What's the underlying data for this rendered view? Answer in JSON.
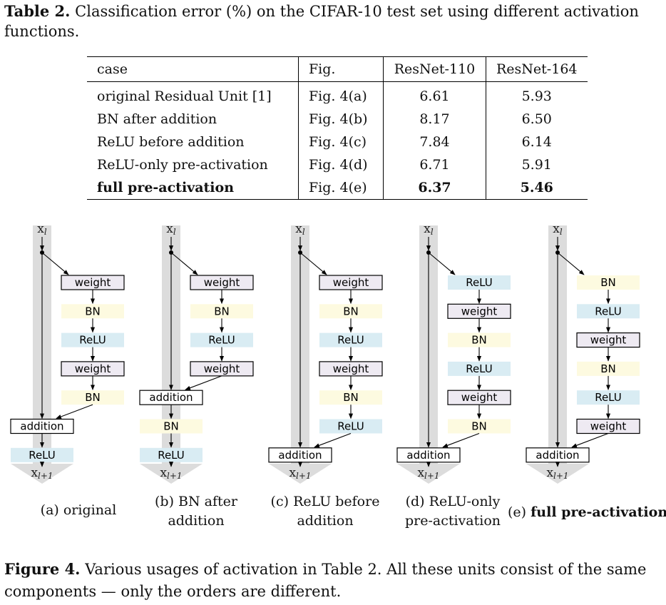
{
  "table": {
    "caption_label": "Table 2.",
    "caption_text": "Classification error (%) on the CIFAR-10 test set using different activation functions.",
    "headers": [
      "case",
      "Fig.",
      "ResNet-110",
      "ResNet-164"
    ],
    "rows": [
      {
        "case": "original Residual Unit [1]",
        "fig": "Fig. 4(a)",
        "resnet110": "6.61",
        "resnet164": "5.93"
      },
      {
        "case": "BN after addition",
        "fig": "Fig. 4(b)",
        "resnet110": "8.17",
        "resnet164": "6.50"
      },
      {
        "case": "ReLU before addition",
        "fig": "Fig. 4(c)",
        "resnet110": "7.84",
        "resnet164": "6.14"
      },
      {
        "case": "ReLU-only pre-activation",
        "fig": "Fig. 4(d)",
        "resnet110": "6.71",
        "resnet164": "5.91"
      },
      {
        "case": "full pre-activation",
        "fig": "Fig. 4(e)",
        "resnet110": "6.37",
        "resnet164": "5.46"
      }
    ]
  },
  "figure": {
    "input_label": "x",
    "input_sub": "l",
    "output_label": "x",
    "output_sub": "l+1",
    "colors": {
      "weight": "#eeeaf2",
      "bn": "#fdfae0",
      "relu": "#d9ecf3",
      "addition": "#ffffff",
      "pathway": "#dcdcdc"
    },
    "diagrams": [
      {
        "id": "a",
        "caption_prefix": "(a)",
        "caption": "original",
        "caption_bold": false,
        "branch": [
          "weight",
          "BN",
          "ReLU",
          "weight",
          "BN"
        ],
        "post": [
          "ReLU"
        ]
      },
      {
        "id": "b",
        "caption_prefix": "(b)",
        "caption": "BN after addition",
        "caption_bold": false,
        "branch": [
          "weight",
          "BN",
          "ReLU",
          "weight"
        ],
        "post": [
          "BN",
          "ReLU"
        ]
      },
      {
        "id": "c",
        "caption_prefix": "(c)",
        "caption": "ReLU before addition",
        "caption_bold": false,
        "branch": [
          "weight",
          "BN",
          "ReLU",
          "weight",
          "BN",
          "ReLU"
        ],
        "post": []
      },
      {
        "id": "d",
        "caption_prefix": "(d)",
        "caption": "ReLU-only pre-activation",
        "caption_bold": false,
        "branch": [
          "ReLU",
          "weight",
          "BN",
          "ReLU",
          "weight",
          "BN"
        ],
        "post": []
      },
      {
        "id": "e",
        "caption_prefix": "(e)",
        "caption": "full pre-activation",
        "caption_bold": true,
        "branch": [
          "BN",
          "ReLU",
          "weight",
          "BN",
          "ReLU",
          "weight"
        ],
        "post": []
      }
    ],
    "addition_label": "addition",
    "caption_label": "Figure 4.",
    "caption_text": "Various usages of activation in Table 2. All these units consist of the same components — only the orders are different."
  }
}
